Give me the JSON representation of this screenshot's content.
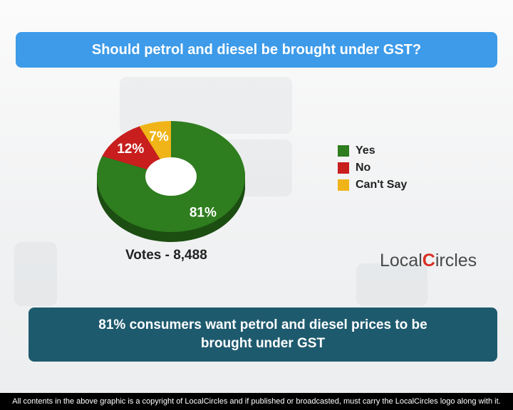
{
  "title": "Should petrol and diesel be brought under GST?",
  "chart_data": {
    "type": "pie",
    "style": "donut",
    "categories": [
      "Yes",
      "No",
      "Can't Say"
    ],
    "values": [
      81,
      12,
      7
    ],
    "labels": [
      "81%",
      "12%",
      "7%"
    ],
    "colors": [
      "#2e7d1e",
      "#c81e1e",
      "#f0b418"
    ],
    "legend": "right"
  },
  "votes_label": "Votes - 8,488",
  "logo": {
    "prefix": "Local",
    "pin": "C",
    "suffix": "ircles"
  },
  "finding": "81% consumers want petrol and diesel prices to be brought under GST",
  "footer": "All contents in the above graphic is a copyright of LocalCircles and if published or broadcasted, must carry the LocalCircles logo along with it."
}
